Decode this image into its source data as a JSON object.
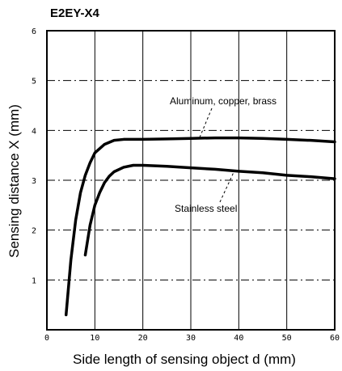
{
  "chart_data": {
    "type": "line",
    "title": "E2EY-X4",
    "xlabel": "Side length of sensing object d (mm)",
    "ylabel": "Sensing distance X (mm)",
    "xlim": [
      0,
      60
    ],
    "ylim": [
      0,
      6
    ],
    "xticks": [
      0,
      10,
      20,
      30,
      40,
      50,
      60
    ],
    "yticks": [
      1,
      2,
      3,
      4,
      5,
      6
    ],
    "grid": true,
    "series": [
      {
        "name": "Aluminum, copper, brass",
        "x": [
          4,
          5,
          6,
          7,
          8,
          9,
          10,
          12,
          14,
          16,
          18,
          20,
          25,
          30,
          35,
          40,
          45,
          50,
          55,
          60
        ],
        "y": [
          0.3,
          1.4,
          2.2,
          2.75,
          3.1,
          3.35,
          3.55,
          3.72,
          3.8,
          3.82,
          3.82,
          3.82,
          3.83,
          3.84,
          3.85,
          3.85,
          3.84,
          3.82,
          3.8,
          3.77
        ]
      },
      {
        "name": "Stainless steel",
        "x": [
          8,
          9,
          10,
          11,
          12,
          13,
          14,
          16,
          18,
          20,
          25,
          30,
          35,
          40,
          45,
          50,
          55,
          60
        ],
        "y": [
          1.5,
          2.1,
          2.5,
          2.75,
          2.95,
          3.08,
          3.17,
          3.26,
          3.3,
          3.3,
          3.28,
          3.25,
          3.22,
          3.18,
          3.15,
          3.1,
          3.07,
          3.03
        ]
      }
    ],
    "annotations": [
      {
        "text": "Aluminum, copper, brass",
        "series": 0
      },
      {
        "text": "Stainless steel",
        "series": 1
      }
    ]
  }
}
